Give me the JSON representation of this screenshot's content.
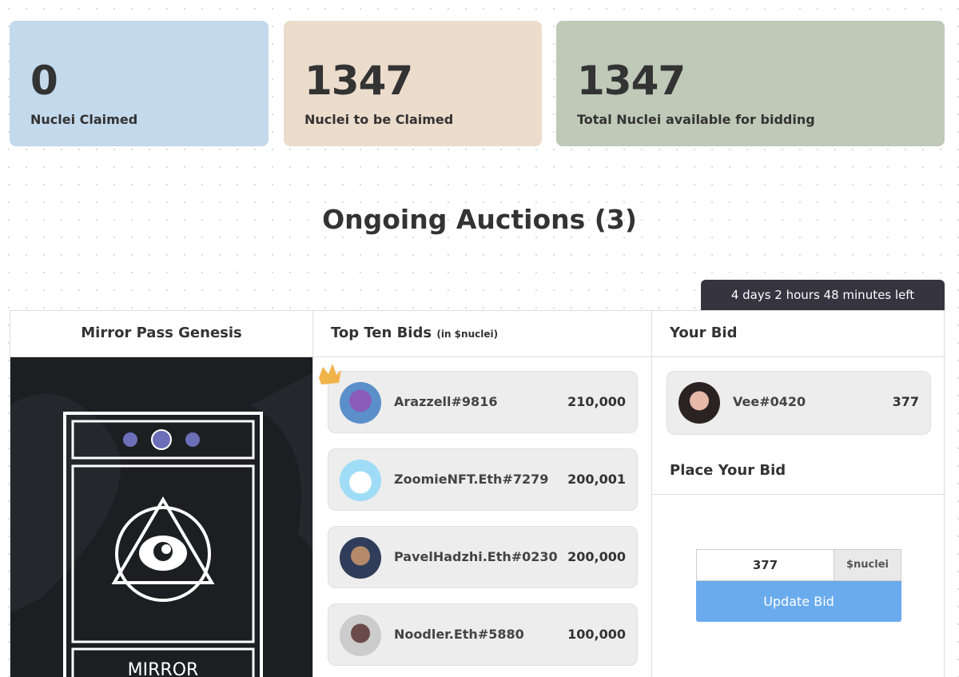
{
  "stats": [
    {
      "value": "0",
      "label": "Nuclei Claimed"
    },
    {
      "value": "1347",
      "label": "Nuclei to be Claimed"
    },
    {
      "value": "1347",
      "label": "Total Nuclei available for bidding"
    }
  ],
  "section_title": "Ongoing Auctions (3)",
  "auction": {
    "time_left": "4 days 2 hours 48 minutes left",
    "item_title": "Mirror Pass Genesis",
    "item_card_text": "MIRROR",
    "bids_title": "Top Ten Bids",
    "bids_unit": "(in $nuclei)",
    "bids": [
      {
        "name": "Arazzell#9816",
        "amount": "210,000"
      },
      {
        "name": "ZoomieNFT.Eth#7279",
        "amount": "200,001"
      },
      {
        "name": "PavelHadzhi.Eth#0230",
        "amount": "200,000"
      },
      {
        "name": "Noodler.Eth#5880",
        "amount": "100,000"
      }
    ],
    "your_bid_title": "Your Bid",
    "your_bid": {
      "name": "Vee#0420",
      "amount": "377"
    },
    "place_bid_title": "Place Your Bid",
    "bid_input": "377",
    "bid_unit": "$nuclei",
    "button": "Update Bid"
  }
}
